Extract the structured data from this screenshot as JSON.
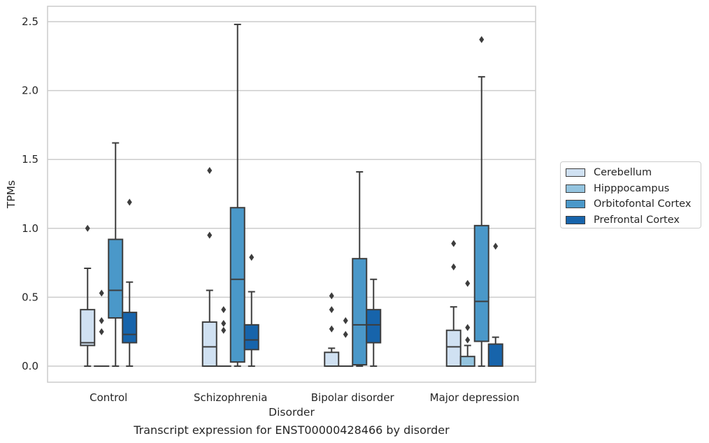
{
  "chart_data": {
    "type": "box",
    "caption": "Transcript expression for ENST00000428466 by disorder",
    "xlabel": "Disorder",
    "ylabel": "TPMs",
    "ylim": [
      -0.12,
      2.62
    ],
    "yticks": [
      0.0,
      0.5,
      1.0,
      1.5,
      2.0,
      2.5
    ],
    "ytick_labels": [
      "0.0",
      "0.5",
      "1.0",
      "1.5",
      "2.0",
      "2.5"
    ],
    "grid": true,
    "legend_position": "right",
    "categories": [
      "Control",
      "Schizophrenia",
      "Bipolar disorder",
      "Major depression"
    ],
    "series": [
      {
        "name": "Cerebellum",
        "color": "#d0e1f2",
        "boxes": [
          {
            "q1": 0.15,
            "median": 0.17,
            "q3": 0.41,
            "whisker_low": 0.0,
            "whisker_high": 0.71,
            "outliers": [
              1.0
            ]
          },
          {
            "q1": 0.0,
            "median": 0.14,
            "q3": 0.32,
            "whisker_low": 0.0,
            "whisker_high": 0.55,
            "outliers": [
              0.95,
              1.42
            ]
          },
          {
            "q1": 0.0,
            "median": 0.0,
            "q3": 0.1,
            "whisker_low": 0.0,
            "whisker_high": 0.13,
            "outliers": [
              0.27,
              0.41,
              0.51
            ]
          },
          {
            "q1": 0.0,
            "median": 0.14,
            "q3": 0.26,
            "whisker_low": 0.0,
            "whisker_high": 0.43,
            "outliers": [
              0.72,
              0.89
            ]
          }
        ]
      },
      {
        "name": "Hipppocampus",
        "color": "#94c4df",
        "boxes": [
          {
            "q1": 0.0,
            "median": 0.0,
            "q3": 0.0,
            "whisker_low": 0.0,
            "whisker_high": 0.0,
            "outliers": [
              0.25,
              0.33,
              0.53
            ]
          },
          {
            "q1": 0.0,
            "median": 0.0,
            "q3": 0.0,
            "whisker_low": 0.0,
            "whisker_high": 0.0,
            "outliers": [
              0.26,
              0.31,
              0.41
            ]
          },
          {
            "q1": 0.0,
            "median": 0.0,
            "q3": 0.0,
            "whisker_low": 0.0,
            "whisker_high": 0.0,
            "outliers": [
              0.23,
              0.33
            ]
          },
          {
            "q1": 0.0,
            "median": 0.0,
            "q3": 0.07,
            "whisker_low": 0.0,
            "whisker_high": 0.15,
            "outliers": [
              0.19,
              0.28,
              0.6
            ]
          }
        ]
      },
      {
        "name": "Orbitofontal Cortex",
        "color": "#4a98c9",
        "boxes": [
          {
            "q1": 0.35,
            "median": 0.55,
            "q3": 0.92,
            "whisker_low": 0.0,
            "whisker_high": 1.62,
            "outliers": []
          },
          {
            "q1": 0.03,
            "median": 0.63,
            "q3": 1.15,
            "whisker_low": 0.0,
            "whisker_high": 2.48,
            "outliers": []
          },
          {
            "q1": 0.01,
            "median": 0.3,
            "q3": 0.78,
            "whisker_low": 0.0,
            "whisker_high": 1.41,
            "outliers": []
          },
          {
            "q1": 0.18,
            "median": 0.47,
            "q3": 1.02,
            "whisker_low": 0.0,
            "whisker_high": 2.1,
            "outliers": [
              2.37
            ]
          }
        ]
      },
      {
        "name": "Prefrontal Cortex",
        "color": "#1764ab",
        "boxes": [
          {
            "q1": 0.17,
            "median": 0.23,
            "q3": 0.39,
            "whisker_low": 0.0,
            "whisker_high": 0.61,
            "outliers": [
              1.19
            ]
          },
          {
            "q1": 0.12,
            "median": 0.19,
            "q3": 0.3,
            "whisker_low": 0.0,
            "whisker_high": 0.54,
            "outliers": [
              0.79
            ]
          },
          {
            "q1": 0.17,
            "median": 0.3,
            "q3": 0.41,
            "whisker_low": 0.0,
            "whisker_high": 0.63,
            "outliers": []
          },
          {
            "q1": 0.0,
            "median": 0.0,
            "q3": 0.16,
            "whisker_low": 0.0,
            "whisker_high": 0.21,
            "outliers": [
              0.87
            ]
          }
        ]
      }
    ]
  }
}
